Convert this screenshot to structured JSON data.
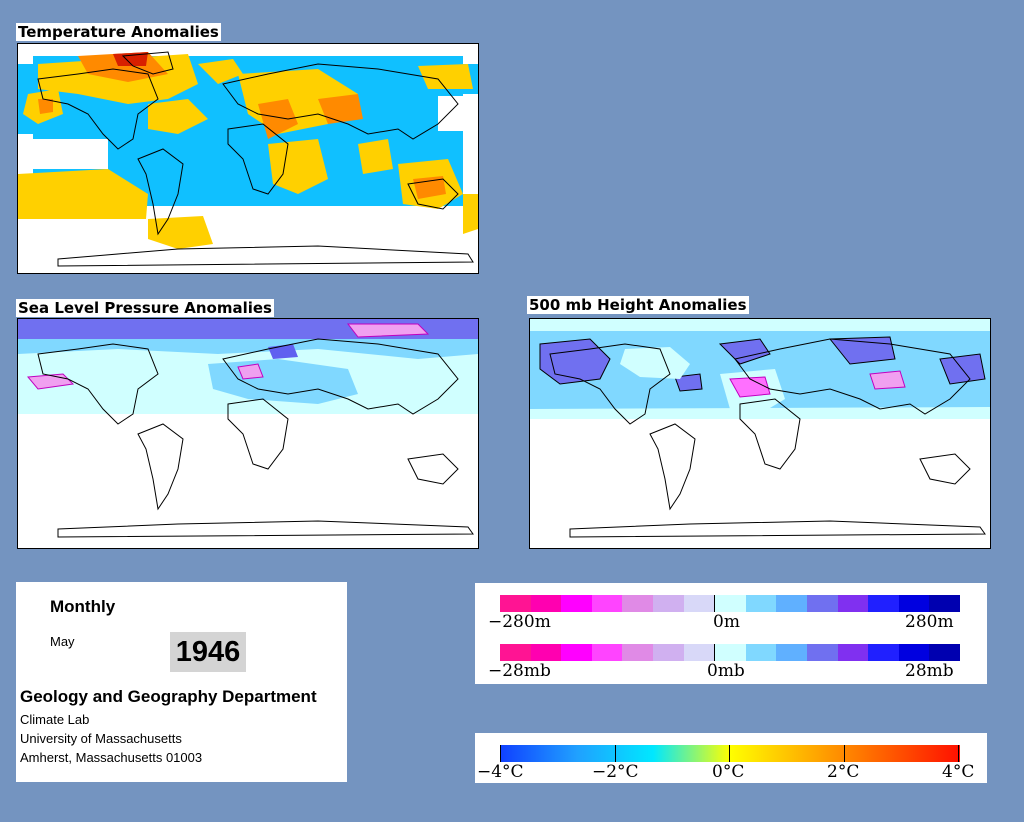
{
  "panels": {
    "temperature": {
      "title": "Temperature Anomalies"
    },
    "slp": {
      "title": "Sea Level Pressure Anomalies"
    },
    "height500": {
      "title": "500 mb Height Anomalies"
    }
  },
  "info": {
    "period": "Monthly",
    "month": "May",
    "year": "1946",
    "department": "Geology and Geography Department",
    "lab": "Climate Lab",
    "university": "University of Massachusetts",
    "address": "Amherst, Massachusetts 01003"
  },
  "legend_height": {
    "labels": [
      "−280m",
      "0m",
      "280m"
    ],
    "colors": [
      "#ff1493",
      "#ff00b0",
      "#ff00ff",
      "#ff44ff",
      "#e08ae6",
      "#d0b0f0",
      "#d8d8f8",
      "#d0ffff",
      "#80d8ff",
      "#60b0ff",
      "#7070f0",
      "#8030f0",
      "#2020ff",
      "#0000e0",
      "#0000b0"
    ]
  },
  "legend_pressure": {
    "labels": [
      "−28mb",
      "0mb",
      "28mb"
    ],
    "colors": [
      "#ff1493",
      "#ff00b0",
      "#ff00ff",
      "#ff44ff",
      "#e08ae6",
      "#d0b0f0",
      "#d8d8f8",
      "#d0ffff",
      "#80d8ff",
      "#60b0ff",
      "#7070f0",
      "#8030f0",
      "#2020ff",
      "#0000e0",
      "#0000b0"
    ]
  },
  "legend_temperature": {
    "labels": [
      "−4°C",
      "−2°C",
      "0°C",
      "2°C",
      "4°C"
    ],
    "gradient": [
      "#1040ff",
      "#20a0ff",
      "#00e8ff",
      "#ffff00",
      "#ffb000",
      "#ff6000",
      "#ff1000"
    ]
  },
  "colors": {
    "background": "#7494c0",
    "cold": "#10c0ff",
    "cold_strong": "#1f7fff",
    "warm": "#ffd000",
    "warm_strong": "#ff8a00",
    "hot": "#d82000",
    "low_height": "#7070f0",
    "high_height": "#ff70ff",
    "light_cyan": "#d0ffff"
  }
}
